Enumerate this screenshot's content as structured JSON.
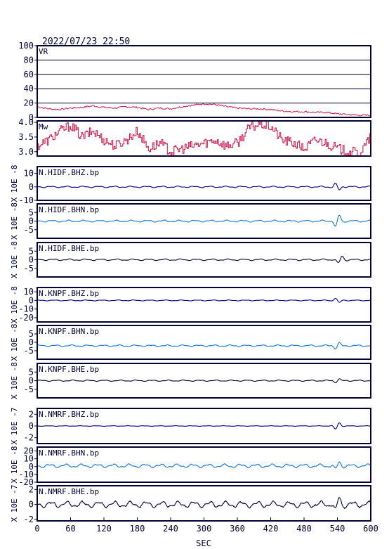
{
  "header": {
    "timestamp": "2022/07/23 22:50"
  },
  "x_axis": {
    "label": "SEC",
    "ticks": [
      0,
      60,
      120,
      180,
      240,
      300,
      360,
      420,
      480,
      540,
      600
    ],
    "range": [
      0,
      600
    ]
  },
  "colors": {
    "frame": "#000033",
    "vr": "#cc1144",
    "mw": "#cc1144",
    "dark_trace": "#000088",
    "light_trace": "#1177dd"
  },
  "chart_data": [
    {
      "type": "line",
      "title": "VR",
      "ylim": [
        0,
        100
      ],
      "yticks": [
        0,
        20,
        40,
        60,
        80,
        100
      ],
      "grid": true,
      "x": [
        0,
        20,
        40,
        60,
        80,
        100,
        120,
        140,
        160,
        180,
        200,
        220,
        240,
        260,
        280,
        300,
        320,
        340,
        360,
        380,
        400,
        420,
        440,
        460,
        480,
        500,
        520,
        540,
        560,
        580,
        600
      ],
      "series": [
        {
          "color": "#cc1144",
          "values": [
            15,
            12,
            11,
            13,
            14,
            16,
            14,
            13,
            15,
            14,
            11,
            13,
            12,
            15,
            17,
            19,
            18,
            15,
            13,
            12,
            12,
            11,
            9,
            8,
            8,
            7,
            7,
            5,
            4,
            3,
            3
          ]
        }
      ]
    },
    {
      "type": "line",
      "title": "Mw",
      "ylim": [
        2.85,
        4.05
      ],
      "yticks": [
        "3.0",
        "3.5",
        "4.0"
      ],
      "x": [
        0,
        20,
        40,
        60,
        80,
        100,
        120,
        140,
        160,
        180,
        200,
        220,
        240,
        260,
        280,
        300,
        320,
        340,
        360,
        380,
        400,
        420,
        440,
        460,
        480,
        500,
        520,
        540,
        560,
        580,
        600
      ],
      "series": [
        {
          "color": "#cc1144",
          "values": [
            3.2,
            3.4,
            3.7,
            3.9,
            3.5,
            3.7,
            3.4,
            3.2,
            3.4,
            3.7,
            3.1,
            3.3,
            3.0,
            3.1,
            3.2,
            3.3,
            3.4,
            3.2,
            3.3,
            3.8,
            3.95,
            3.85,
            3.4,
            3.3,
            3.1,
            3.4,
            3.3,
            3.1,
            3.0,
            2.95,
            3.5
          ]
        }
      ]
    },
    {
      "type": "line",
      "title": "N.HIDF.BHZ.bp",
      "ylabel": "X 10E -8",
      "ylim": [
        -10,
        15
      ],
      "yticks": [
        "10",
        "0",
        "-10"
      ],
      "color": "#000088",
      "baseline": 0,
      "noise": 0.6,
      "bursts": [
        {
          "t": 540,
          "amp": 3.0,
          "sign": -1
        }
      ]
    },
    {
      "type": "line",
      "title": "N.HIDF.BHN.bp",
      "ylabel": "X 10E -8",
      "ylim": [
        -10,
        10
      ],
      "yticks": [
        "5",
        "0",
        "-5"
      ],
      "color": "#1177dd",
      "baseline": 0,
      "noise": 0.6,
      "bursts": [
        {
          "t": 540,
          "amp": 4.2,
          "sign": 1
        }
      ]
    },
    {
      "type": "line",
      "title": "N.HIDF.BHE.bp",
      "ylabel": "X 10E -8",
      "ylim": [
        -10,
        10
      ],
      "yticks": [
        "5",
        "0",
        "-5"
      ],
      "color": "#000033",
      "baseline": 0,
      "noise": 0.5,
      "bursts": [
        {
          "t": 545,
          "amp": 2.6,
          "sign": 1
        }
      ]
    },
    {
      "type": "line",
      "title": "N.KNPF.BHZ.bp",
      "ylabel": "X 10E -8",
      "ylim": [
        -25,
        15
      ],
      "yticks": [
        "10",
        "0",
        "-10",
        "-20"
      ],
      "color": "#000088",
      "baseline": 0,
      "noise": 0.6,
      "bursts": [
        {
          "t": 540,
          "amp": 3.5,
          "sign": -1
        }
      ]
    },
    {
      "type": "line",
      "title": "N.KNPF.BHN.bp",
      "ylabel": "X 10E -8",
      "ylim": [
        -10,
        10
      ],
      "yticks": [
        "5",
        "0",
        "-5"
      ],
      "color": "#1177dd",
      "baseline": -2,
      "noise": 0.5,
      "bursts": [
        {
          "t": 540,
          "amp": 2.0,
          "sign": 1
        }
      ]
    },
    {
      "type": "line",
      "title": "N.KNPF.BHE.bp",
      "ylabel": "X 10E -8",
      "ylim": [
        -10,
        10
      ],
      "yticks": [
        "5",
        "0",
        "-5"
      ],
      "color": "#000033",
      "baseline": 0,
      "noise": 0.4,
      "bursts": [
        {
          "t": 540,
          "amp": 1.2,
          "sign": 1
        }
      ]
    },
    {
      "type": "line",
      "title": "N.NMRF.BHZ.bp",
      "ylabel": "X 10E -7",
      "ylim": [
        -3,
        3
      ],
      "yticks": [
        "2",
        "0",
        "-2"
      ],
      "color": "#000088",
      "baseline": 0,
      "noise": 0.05,
      "bursts": [
        {
          "t": 540,
          "amp": 0.7,
          "sign": 1
        }
      ]
    },
    {
      "type": "line",
      "title": "N.NMRF.BHN.bp",
      "ylabel": "X 10E -8",
      "ylim": [
        -20,
        25
      ],
      "yticks": [
        "20",
        "10",
        "0",
        "-10",
        "-20"
      ],
      "color": "#1177dd",
      "baseline": 1,
      "noise": 2.5,
      "bursts": [
        {
          "t": 540,
          "amp": 6,
          "sign": 1
        }
      ]
    },
    {
      "type": "line",
      "title": "N.NMRF.BHE.bp",
      "ylabel": "X 10E -7",
      "ylim": [
        -2.2,
        2.5
      ],
      "yticks": [
        "2",
        "0",
        "-2"
      ],
      "color": "#000033",
      "baseline": 0,
      "noise": 0.45,
      "bursts": [
        {
          "t": 540,
          "amp": 1.1,
          "sign": 1
        }
      ]
    }
  ]
}
